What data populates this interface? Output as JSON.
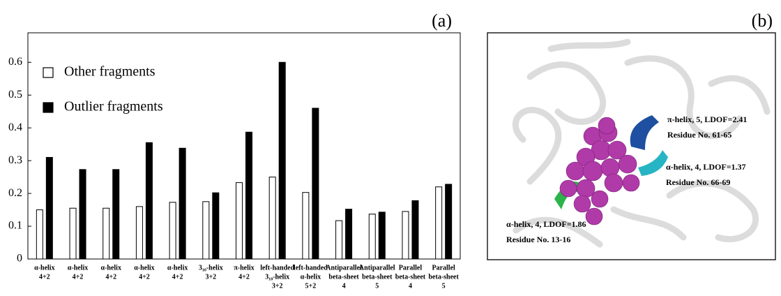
{
  "chart_data": {
    "type": "bar",
    "panel_label": "(a)",
    "categories": [
      [
        "α-helix",
        "4+2"
      ],
      [
        "α-helix",
        "4+2"
      ],
      [
        "α-helix",
        "4+2"
      ],
      [
        "α-helix",
        "4+2"
      ],
      [
        "α-helix",
        "4+2"
      ],
      [
        "3₁₀-helix",
        "3+2"
      ],
      [
        "π-helix",
        "4+2"
      ],
      [
        "left-handed",
        "3₁₀-helix",
        "3+2"
      ],
      [
        "left-handed",
        "α-helix",
        "5+2"
      ],
      [
        "Antiparallel",
        "beta-sheet",
        "4"
      ],
      [
        "Antiparallel",
        "beta-sheet",
        "5"
      ],
      [
        "Parallel",
        "beta-sheet",
        "4"
      ],
      [
        "Parallel",
        "beta-sheet",
        "5"
      ]
    ],
    "series": [
      {
        "name": "Other fragments",
        "color": "#ffffff",
        "values": [
          0.15,
          0.155,
          0.155,
          0.16,
          0.173,
          0.175,
          0.233,
          0.25,
          0.203,
          0.117,
          0.137,
          0.145,
          0.22
        ]
      },
      {
        "name": "Outlier fragments",
        "color": "#000000",
        "values": [
          0.31,
          0.273,
          0.273,
          0.355,
          0.338,
          0.202,
          0.387,
          0.6,
          0.46,
          0.152,
          0.143,
          0.178,
          0.228
        ]
      }
    ],
    "edgecolor": "#000000",
    "ylim": [
      0,
      0.69
    ],
    "yticks": [
      0,
      0.1,
      0.2,
      0.3,
      0.4,
      0.5,
      0.6
    ],
    "grid": false,
    "legend": "upper left"
  },
  "figure_b": {
    "label": "(b)",
    "annotations": [
      [
        "π-helix, 5, LDOF=2.41",
        "Residue No. 61-65"
      ],
      [
        "α-helix, 4, LDOF=1.37",
        "Residue No. 66-69"
      ],
      [
        "α-helix, 4, LDOF=1.86",
        "Residue No. 13-16"
      ]
    ]
  }
}
